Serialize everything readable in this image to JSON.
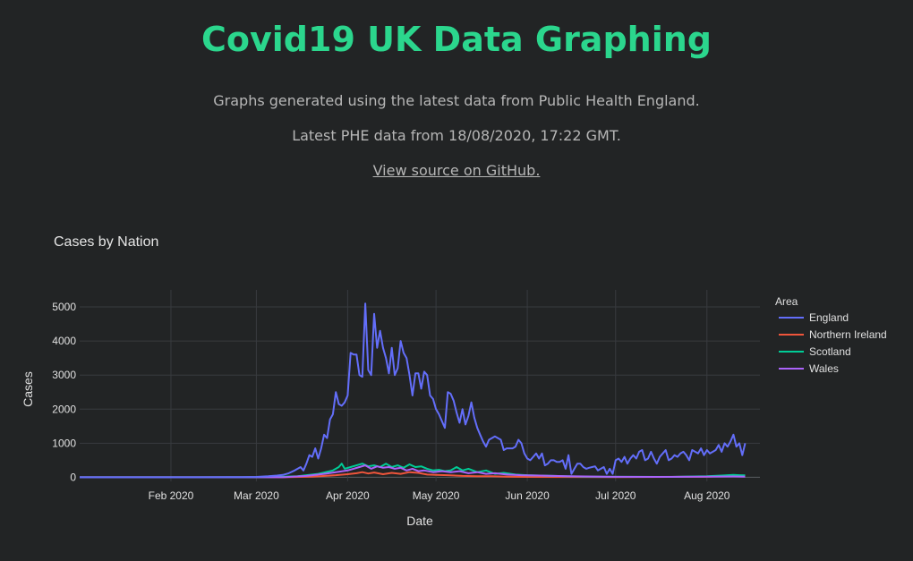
{
  "header": {
    "title": "Covid19 UK Data Graphing",
    "subtitle": "Graphs generated using the latest data from Public Health England.",
    "updated": "Latest PHE data from 18/08/2020, 17:22 GMT.",
    "source_link": "View source on GitHub."
  },
  "colors": {
    "background": "#222425",
    "title": "#2bd68d",
    "grid": "#383b3f"
  },
  "chart_data": {
    "type": "line",
    "title": "Cases by Nation",
    "xlabel": "Date",
    "ylabel": "Cases",
    "legend_title": "Area",
    "legend_position": "right",
    "grid": true,
    "x_range": [
      "2020-01-01",
      "2020-08-19"
    ],
    "ylim": [
      -120,
      5500
    ],
    "x_ticks": [
      {
        "date": "2020-02-01",
        "label": "Feb 2020"
      },
      {
        "date": "2020-03-01",
        "label": "Mar 2020"
      },
      {
        "date": "2020-04-01",
        "label": "Apr 2020"
      },
      {
        "date": "2020-05-01",
        "label": "May 2020"
      },
      {
        "date": "2020-06-01",
        "label": "Jun 2020"
      },
      {
        "date": "2020-07-01",
        "label": "Jul 2020"
      },
      {
        "date": "2020-08-01",
        "label": "Aug 2020"
      }
    ],
    "y_ticks": [
      0,
      1000,
      2000,
      3000,
      4000,
      5000
    ],
    "series": [
      {
        "name": "England",
        "color": "#636efa",
        "points": [
          [
            "2020-01-01",
            0
          ],
          [
            "2020-02-10",
            0
          ],
          [
            "2020-02-25",
            5
          ],
          [
            "2020-03-01",
            10
          ],
          [
            "2020-03-05",
            30
          ],
          [
            "2020-03-08",
            50
          ],
          [
            "2020-03-10",
            70
          ],
          [
            "2020-03-12",
            120
          ],
          [
            "2020-03-14",
            200
          ],
          [
            "2020-03-16",
            300
          ],
          [
            "2020-03-17",
            200
          ],
          [
            "2020-03-18",
            400
          ],
          [
            "2020-03-19",
            650
          ],
          [
            "2020-03-20",
            600
          ],
          [
            "2020-03-21",
            850
          ],
          [
            "2020-03-22",
            550
          ],
          [
            "2020-03-23",
            850
          ],
          [
            "2020-03-24",
            1250
          ],
          [
            "2020-03-25",
            1150
          ],
          [
            "2020-03-26",
            1700
          ],
          [
            "2020-03-27",
            1850
          ],
          [
            "2020-03-28",
            2500
          ],
          [
            "2020-03-29",
            2150
          ],
          [
            "2020-03-30",
            2100
          ],
          [
            "2020-03-31",
            2200
          ],
          [
            "2020-04-01",
            2400
          ],
          [
            "2020-04-02",
            3650
          ],
          [
            "2020-04-03",
            3600
          ],
          [
            "2020-04-04",
            3600
          ],
          [
            "2020-04-05",
            3000
          ],
          [
            "2020-04-06",
            2950
          ],
          [
            "2020-04-07",
            5100
          ],
          [
            "2020-04-08",
            3150
          ],
          [
            "2020-04-09",
            3000
          ],
          [
            "2020-04-10",
            4800
          ],
          [
            "2020-04-11",
            3800
          ],
          [
            "2020-04-12",
            4300
          ],
          [
            "2020-04-13",
            3800
          ],
          [
            "2020-04-14",
            3500
          ],
          [
            "2020-04-15",
            3050
          ],
          [
            "2020-04-16",
            3800
          ],
          [
            "2020-04-17",
            3000
          ],
          [
            "2020-04-18",
            3200
          ],
          [
            "2020-04-19",
            4000
          ],
          [
            "2020-04-20",
            3650
          ],
          [
            "2020-04-21",
            3500
          ],
          [
            "2020-04-22",
            3000
          ],
          [
            "2020-04-23",
            2400
          ],
          [
            "2020-04-24",
            3050
          ],
          [
            "2020-04-25",
            3050
          ],
          [
            "2020-04-26",
            2600
          ],
          [
            "2020-04-27",
            3100
          ],
          [
            "2020-04-28",
            3000
          ],
          [
            "2020-04-29",
            2400
          ],
          [
            "2020-04-30",
            2300
          ],
          [
            "2020-05-01",
            2000
          ],
          [
            "2020-05-02",
            1850
          ],
          [
            "2020-05-03",
            1650
          ],
          [
            "2020-05-04",
            1450
          ],
          [
            "2020-05-05",
            2500
          ],
          [
            "2020-05-06",
            2450
          ],
          [
            "2020-05-07",
            2250
          ],
          [
            "2020-05-08",
            1900
          ],
          [
            "2020-05-09",
            1600
          ],
          [
            "2020-05-10",
            2000
          ],
          [
            "2020-05-11",
            1550
          ],
          [
            "2020-05-12",
            1800
          ],
          [
            "2020-05-13",
            2200
          ],
          [
            "2020-05-14",
            1750
          ],
          [
            "2020-05-15",
            1450
          ],
          [
            "2020-05-16",
            1250
          ],
          [
            "2020-05-17",
            1050
          ],
          [
            "2020-05-18",
            900
          ],
          [
            "2020-05-19",
            1100
          ],
          [
            "2020-05-20",
            1150
          ],
          [
            "2020-05-21",
            1200
          ],
          [
            "2020-05-22",
            1150
          ],
          [
            "2020-05-23",
            1100
          ],
          [
            "2020-05-24",
            800
          ],
          [
            "2020-05-25",
            850
          ],
          [
            "2020-05-26",
            850
          ],
          [
            "2020-05-27",
            850
          ],
          [
            "2020-05-28",
            900
          ],
          [
            "2020-05-29",
            1100
          ],
          [
            "2020-05-30",
            1000
          ],
          [
            "2020-05-31",
            700
          ],
          [
            "2020-06-01",
            550
          ],
          [
            "2020-06-02",
            500
          ],
          [
            "2020-06-03",
            600
          ],
          [
            "2020-06-04",
            700
          ],
          [
            "2020-06-05",
            550
          ],
          [
            "2020-06-06",
            700
          ],
          [
            "2020-06-07",
            350
          ],
          [
            "2020-06-08",
            400
          ],
          [
            "2020-06-09",
            500
          ],
          [
            "2020-06-10",
            500
          ],
          [
            "2020-06-11",
            450
          ],
          [
            "2020-06-12",
            450
          ],
          [
            "2020-06-13",
            500
          ],
          [
            "2020-06-14",
            250
          ],
          [
            "2020-06-15",
            650
          ],
          [
            "2020-06-16",
            100
          ],
          [
            "2020-06-17",
            250
          ],
          [
            "2020-06-18",
            400
          ],
          [
            "2020-06-19",
            400
          ],
          [
            "2020-06-20",
            300
          ],
          [
            "2020-06-21",
            250
          ],
          [
            "2020-06-22",
            280
          ],
          [
            "2020-06-23",
            300
          ],
          [
            "2020-06-24",
            320
          ],
          [
            "2020-06-25",
            200
          ],
          [
            "2020-06-26",
            250
          ],
          [
            "2020-06-27",
            300
          ],
          [
            "2020-06-28",
            100
          ],
          [
            "2020-06-29",
            250
          ],
          [
            "2020-06-30",
            100
          ],
          [
            "2020-07-01",
            500
          ],
          [
            "2020-07-02",
            550
          ],
          [
            "2020-07-03",
            450
          ],
          [
            "2020-07-04",
            600
          ],
          [
            "2020-07-05",
            400
          ],
          [
            "2020-07-06",
            550
          ],
          [
            "2020-07-07",
            650
          ],
          [
            "2020-07-08",
            550
          ],
          [
            "2020-07-09",
            750
          ],
          [
            "2020-07-10",
            800
          ],
          [
            "2020-07-11",
            500
          ],
          [
            "2020-07-12",
            550
          ],
          [
            "2020-07-13",
            750
          ],
          [
            "2020-07-14",
            550
          ],
          [
            "2020-07-15",
            400
          ],
          [
            "2020-07-16",
            600
          ],
          [
            "2020-07-17",
            700
          ],
          [
            "2020-07-18",
            800
          ],
          [
            "2020-07-19",
            500
          ],
          [
            "2020-07-20",
            550
          ],
          [
            "2020-07-21",
            650
          ],
          [
            "2020-07-22",
            600
          ],
          [
            "2020-07-23",
            700
          ],
          [
            "2020-07-24",
            750
          ],
          [
            "2020-07-25",
            650
          ],
          [
            "2020-07-26",
            500
          ],
          [
            "2020-07-27",
            800
          ],
          [
            "2020-07-28",
            750
          ],
          [
            "2020-07-29",
            700
          ],
          [
            "2020-07-30",
            850
          ],
          [
            "2020-07-31",
            650
          ],
          [
            "2020-08-01",
            800
          ],
          [
            "2020-08-02",
            700
          ],
          [
            "2020-08-03",
            750
          ],
          [
            "2020-08-04",
            800
          ],
          [
            "2020-08-05",
            950
          ],
          [
            "2020-08-06",
            750
          ],
          [
            "2020-08-07",
            1000
          ],
          [
            "2020-08-08",
            900
          ],
          [
            "2020-08-09",
            1050
          ],
          [
            "2020-08-10",
            1250
          ],
          [
            "2020-08-11",
            900
          ],
          [
            "2020-08-12",
            1000
          ],
          [
            "2020-08-13",
            650
          ],
          [
            "2020-08-14",
            1000
          ]
        ]
      },
      {
        "name": "Northern Ireland",
        "color": "#ef553b",
        "points": [
          [
            "2020-01-01",
            0
          ],
          [
            "2020-03-10",
            0
          ],
          [
            "2020-03-20",
            20
          ],
          [
            "2020-03-28",
            60
          ],
          [
            "2020-04-01",
            90
          ],
          [
            "2020-04-04",
            120
          ],
          [
            "2020-04-06",
            150
          ],
          [
            "2020-04-08",
            110
          ],
          [
            "2020-04-10",
            140
          ],
          [
            "2020-04-13",
            90
          ],
          [
            "2020-04-16",
            130
          ],
          [
            "2020-04-19",
            100
          ],
          [
            "2020-04-22",
            150
          ],
          [
            "2020-04-25",
            130
          ],
          [
            "2020-04-28",
            80
          ],
          [
            "2020-05-01",
            70
          ],
          [
            "2020-05-05",
            60
          ],
          [
            "2020-05-10",
            40
          ],
          [
            "2020-05-15",
            30
          ],
          [
            "2020-05-20",
            30
          ],
          [
            "2020-05-25",
            20
          ],
          [
            "2020-06-01",
            10
          ],
          [
            "2020-07-01",
            5
          ],
          [
            "2020-07-20",
            10
          ],
          [
            "2020-08-01",
            20
          ],
          [
            "2020-08-08",
            40
          ],
          [
            "2020-08-12",
            50
          ],
          [
            "2020-08-14",
            40
          ]
        ]
      },
      {
        "name": "Scotland",
        "color": "#00cc96",
        "points": [
          [
            "2020-01-01",
            0
          ],
          [
            "2020-03-05",
            0
          ],
          [
            "2020-03-15",
            30
          ],
          [
            "2020-03-22",
            100
          ],
          [
            "2020-03-27",
            200
          ],
          [
            "2020-03-29",
            300
          ],
          [
            "2020-03-30",
            400
          ],
          [
            "2020-03-31",
            250
          ],
          [
            "2020-04-02",
            300
          ],
          [
            "2020-04-04",
            350
          ],
          [
            "2020-04-06",
            400
          ],
          [
            "2020-04-08",
            320
          ],
          [
            "2020-04-10",
            350
          ],
          [
            "2020-04-12",
            300
          ],
          [
            "2020-04-14",
            400
          ],
          [
            "2020-04-16",
            300
          ],
          [
            "2020-04-18",
            350
          ],
          [
            "2020-04-20",
            280
          ],
          [
            "2020-04-22",
            380
          ],
          [
            "2020-04-24",
            300
          ],
          [
            "2020-04-26",
            320
          ],
          [
            "2020-04-28",
            250
          ],
          [
            "2020-04-30",
            200
          ],
          [
            "2020-05-02",
            220
          ],
          [
            "2020-05-04",
            180
          ],
          [
            "2020-05-06",
            200
          ],
          [
            "2020-05-08",
            300
          ],
          [
            "2020-05-10",
            200
          ],
          [
            "2020-05-12",
            250
          ],
          [
            "2020-05-15",
            150
          ],
          [
            "2020-05-18",
            200
          ],
          [
            "2020-05-21",
            100
          ],
          [
            "2020-05-24",
            130
          ],
          [
            "2020-05-28",
            80
          ],
          [
            "2020-06-01",
            60
          ],
          [
            "2020-06-10",
            40
          ],
          [
            "2020-06-20",
            20
          ],
          [
            "2020-07-01",
            15
          ],
          [
            "2020-07-20",
            10
          ],
          [
            "2020-08-01",
            30
          ],
          [
            "2020-08-06",
            50
          ],
          [
            "2020-08-10",
            70
          ],
          [
            "2020-08-12",
            60
          ],
          [
            "2020-08-14",
            55
          ]
        ]
      },
      {
        "name": "Wales",
        "color": "#ab63fa",
        "points": [
          [
            "2020-01-01",
            0
          ],
          [
            "2020-03-10",
            0
          ],
          [
            "2020-03-18",
            40
          ],
          [
            "2020-03-24",
            100
          ],
          [
            "2020-03-28",
            150
          ],
          [
            "2020-04-01",
            200
          ],
          [
            "2020-04-03",
            250
          ],
          [
            "2020-04-05",
            300
          ],
          [
            "2020-04-07",
            350
          ],
          [
            "2020-04-09",
            250
          ],
          [
            "2020-04-11",
            320
          ],
          [
            "2020-04-13",
            280
          ],
          [
            "2020-04-15",
            300
          ],
          [
            "2020-04-17",
            250
          ],
          [
            "2020-04-19",
            280
          ],
          [
            "2020-04-21",
            200
          ],
          [
            "2020-04-23",
            250
          ],
          [
            "2020-04-25",
            180
          ],
          [
            "2020-04-27",
            200
          ],
          [
            "2020-04-30",
            150
          ],
          [
            "2020-05-03",
            180
          ],
          [
            "2020-05-06",
            150
          ],
          [
            "2020-05-09",
            180
          ],
          [
            "2020-05-12",
            120
          ],
          [
            "2020-05-15",
            150
          ],
          [
            "2020-05-18",
            100
          ],
          [
            "2020-05-21",
            120
          ],
          [
            "2020-05-25",
            80
          ],
          [
            "2020-05-30",
            60
          ],
          [
            "2020-06-05",
            50
          ],
          [
            "2020-06-15",
            30
          ],
          [
            "2020-06-30",
            15
          ],
          [
            "2020-07-15",
            10
          ],
          [
            "2020-08-01",
            20
          ],
          [
            "2020-08-10",
            25
          ],
          [
            "2020-08-14",
            20
          ]
        ]
      }
    ]
  }
}
